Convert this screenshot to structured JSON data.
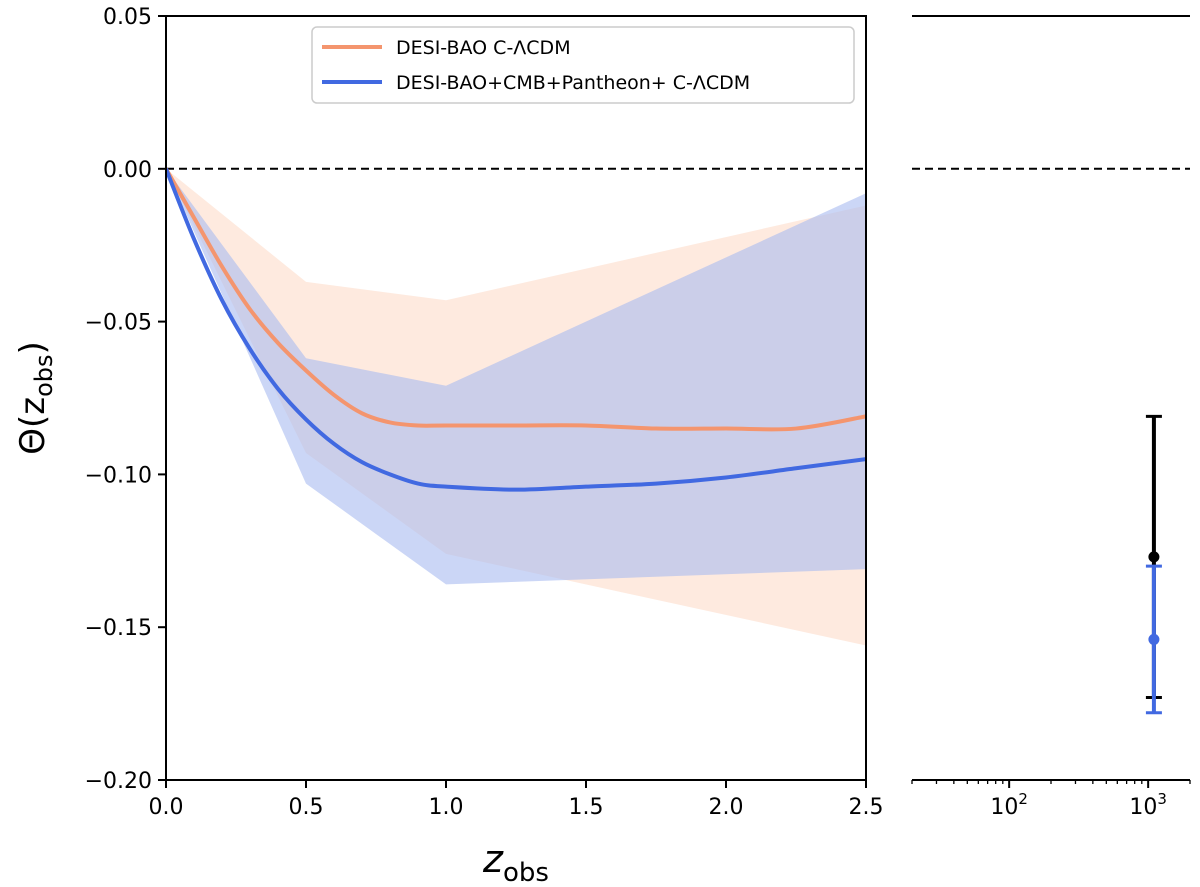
{
  "chart_data": {
    "type": "line",
    "panels": [
      {
        "name": "main",
        "xlabel": "z",
        "xlabel_sub": "obs",
        "ylabel": "Θ(z",
        "ylabel_sub": "obs",
        "ylabel_close": ")",
        "xlim": [
          0.0,
          2.5
        ],
        "ylim": [
          -0.2,
          0.05
        ],
        "x_ticks": [
          0.0,
          0.5,
          1.0,
          1.5,
          2.0,
          2.5
        ],
        "x_tick_labels": [
          "0.0",
          "0.5",
          "1.0",
          "1.5",
          "2.0",
          "2.5"
        ],
        "y_ticks": [
          0.05,
          0.0,
          -0.05,
          -0.1,
          -0.15,
          -0.2
        ],
        "y_tick_labels": [
          "0.05",
          "0.00",
          "−0.05",
          "−0.10",
          "−0.15",
          "−0.20"
        ],
        "reference_line": 0.0,
        "series": [
          {
            "name": "DESI-BAO C-ΛCDM",
            "color": "#f4956e",
            "band_color": "#fddcc9",
            "line": {
              "x": [
                0.0,
                0.1,
                0.2,
                0.3,
                0.4,
                0.5,
                0.6,
                0.7,
                0.8,
                0.9,
                1.0,
                1.25,
                1.5,
                1.75,
                2.0,
                2.25,
                2.5
              ],
              "y": [
                0.0,
                -0.016,
                -0.032,
                -0.046,
                -0.057,
                -0.066,
                -0.074,
                -0.08,
                -0.083,
                -0.084,
                -0.084,
                -0.084,
                -0.084,
                -0.085,
                -0.085,
                -0.085,
                -0.081
              ]
            },
            "band": {
              "x": [
                0.0,
                0.5,
                1.0,
                2.5
              ],
              "upper": [
                0.0,
                -0.037,
                -0.043,
                -0.012
              ],
              "lower": [
                0.0,
                -0.093,
                -0.126,
                -0.156
              ]
            }
          },
          {
            "name": "DESI-BAO+CMB+Pantheon+ C-ΛCDM",
            "color": "#4169e1",
            "band_color": "#a9bbf0",
            "line": {
              "x": [
                0.0,
                0.1,
                0.2,
                0.3,
                0.4,
                0.5,
                0.6,
                0.7,
                0.8,
                0.9,
                1.0,
                1.25,
                1.5,
                1.75,
                2.0,
                2.25,
                2.5
              ],
              "y": [
                0.0,
                -0.023,
                -0.043,
                -0.059,
                -0.072,
                -0.082,
                -0.09,
                -0.096,
                -0.1,
                -0.103,
                -0.104,
                -0.105,
                -0.104,
                -0.103,
                -0.101,
                -0.098,
                -0.095
              ]
            },
            "band": {
              "x": [
                0.0,
                0.5,
                1.0,
                2.5
              ],
              "upper": [
                0.0,
                -0.062,
                -0.071,
                -0.008
              ],
              "lower": [
                0.0,
                -0.103,
                -0.136,
                -0.131
              ]
            }
          }
        ],
        "legend": {
          "placement": "top-center",
          "entries": [
            "DESI-BAO C-ΛCDM",
            "DESI-BAO+CMB+Pantheon+ C-ΛCDM"
          ]
        }
      },
      {
        "name": "high-z",
        "xscale": "log",
        "xlim": [
          20,
          2000
        ],
        "ylim": [
          -0.2,
          0.05
        ],
        "x_tick_labels": [
          {
            "value": 100,
            "base": "10",
            "exp": "2"
          },
          {
            "value": 1000,
            "base": "10",
            "exp": "3"
          }
        ],
        "reference_line": 0.0,
        "points": [
          {
            "series": "DESI-BAO C-ΛCDM",
            "color": "#000000",
            "x": 1100,
            "y": -0.127,
            "err_low": -0.173,
            "err_high": -0.081
          },
          {
            "series": "DESI-BAO+CMB+Pantheon+ C-ΛCDM",
            "color": "#4169e1",
            "x": 1100,
            "y": -0.154,
            "err_low": -0.178,
            "err_high": -0.13
          }
        ]
      }
    ]
  }
}
